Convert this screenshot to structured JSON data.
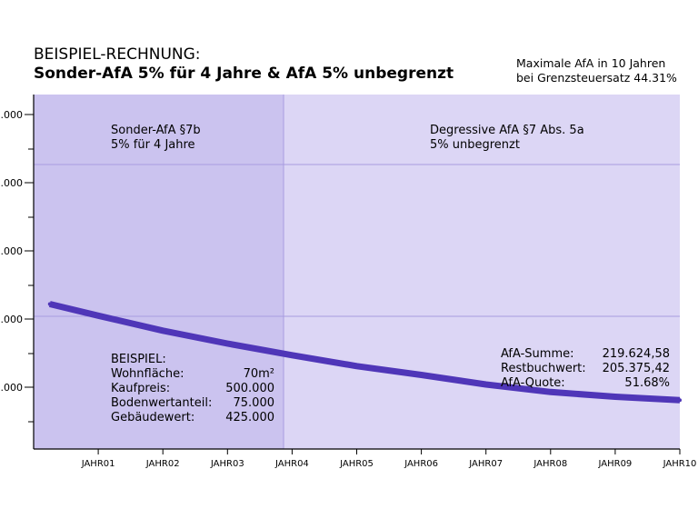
{
  "title": {
    "line1": "BEISPIEL-RECHNUNG:",
    "line2": "Sonder-AfA 5% für 4 Jahre  &  AfA 5% unbegrenzt"
  },
  "note": {
    "line1": "Maximale AfA in 10 Jahren",
    "line2": "bei Grenzsteuersatz 44.31%"
  },
  "chart_data": {
    "type": "line",
    "categories": [
      "JAHR01",
      "JAHR02",
      "JAHR03",
      "JAHR04",
      "JAHR05",
      "JAHR06",
      "JAHR07",
      "JAHR08",
      "JAHR09",
      "JAHR10"
    ],
    "x": [
      0.25,
      1,
      2,
      3,
      4,
      5,
      6,
      7,
      8,
      9,
      10
    ],
    "values": [
      22200,
      20500,
      18300,
      16400,
      14700,
      13100,
      11800,
      10400,
      9300,
      8600,
      8100
    ],
    "ylim": [
      0,
      50000
    ],
    "y_tick_labels": [
      ".000",
      ".000",
      ".000",
      ".000",
      ".000"
    ],
    "grid": true,
    "regions": [
      {
        "from": 0,
        "to": 4,
        "label1": "Sonder-AfA §7b",
        "label2": "5% für 4 Jahre"
      },
      {
        "from": 4,
        "to": 10,
        "label1": "Degressive AfA §7 Abs. 5a",
        "label2": "5% unbegrenzt"
      }
    ]
  },
  "example": {
    "heading": "BEISPIEL:",
    "rows": [
      {
        "label": "Wohnfläche:",
        "value": "70m²"
      },
      {
        "label": "Kaufpreis:",
        "value": "500.000"
      },
      {
        "label": "Bodenwertanteil:",
        "value": "75.000"
      },
      {
        "label": "Gebäudewert:",
        "value": "425.000"
      }
    ]
  },
  "summary": {
    "rows": [
      {
        "label": "AfA-Summe:",
        "value": "219.624,58"
      },
      {
        "label": "Restbuchwert:",
        "value": "205.375,42"
      },
      {
        "label": "AfA-Quote:",
        "value": "51.68%"
      }
    ]
  },
  "colors": {
    "region_left": "#cbc3ef",
    "region_right": "#dcd6f5",
    "line": "#4f36b8",
    "grid": "#a89ce0"
  }
}
